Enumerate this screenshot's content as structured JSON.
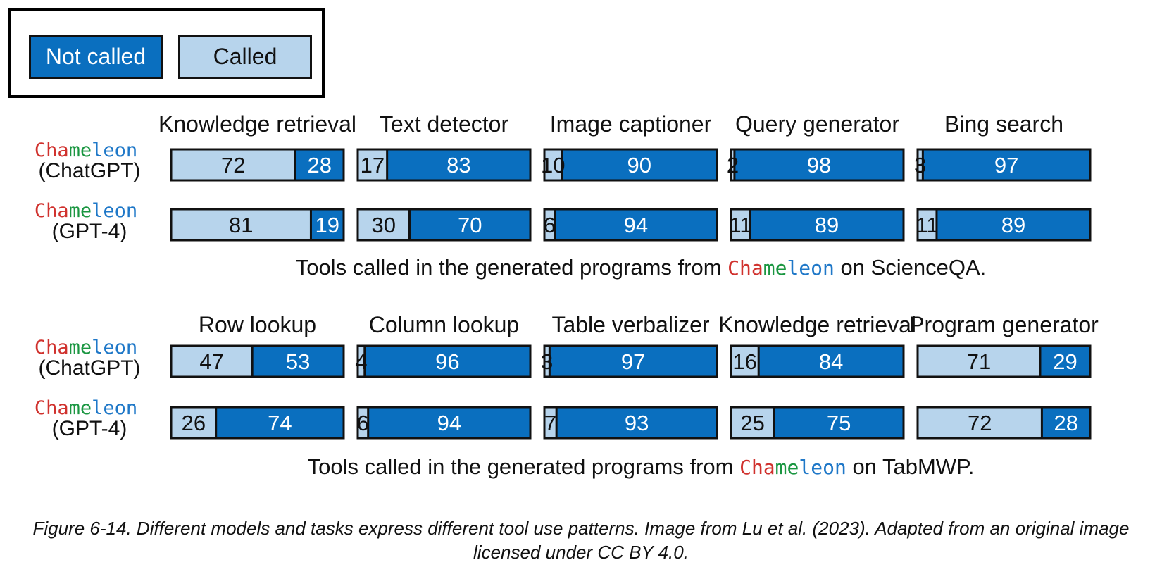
{
  "legend": {
    "not_called": "Not called",
    "called": "Called"
  },
  "colors": {
    "called": "#b7d4ec",
    "not_called": "#0a6fbf",
    "cham_c1": "#d0312d",
    "cham_c2": "#1a9641",
    "cham_c3": "#1f78c8"
  },
  "model_brand": "Chameleon",
  "chart_data": [
    {
      "type": "bar",
      "orientation": "horizontal-stacked",
      "dataset": "ScienceQA",
      "subtitle_pre": "Tools called in the generated programs from",
      "subtitle_post": "on ScienceQA.",
      "models": [
        "(ChatGPT)",
        "(GPT-4)"
      ],
      "tools": [
        {
          "name": "Knowledge retrieval",
          "values": [
            [
              72,
              28
            ],
            [
              81,
              19
            ]
          ]
        },
        {
          "name": "Text detector",
          "values": [
            [
              17,
              83
            ],
            [
              30,
              70
            ]
          ]
        },
        {
          "name": "Image captioner",
          "values": [
            [
              10,
              90
            ],
            [
              6,
              94
            ]
          ]
        },
        {
          "name": "Query generator",
          "values": [
            [
              2,
              98
            ],
            [
              11,
              89
            ]
          ]
        },
        {
          "name": "Bing search",
          "values": [
            [
              3,
              97
            ],
            [
              11,
              89
            ]
          ]
        }
      ],
      "series": [
        "Called",
        "Not called"
      ]
    },
    {
      "type": "bar",
      "orientation": "horizontal-stacked",
      "dataset": "TabMWP",
      "subtitle_pre": "Tools called in the generated programs from",
      "subtitle_post": "on TabMWP.",
      "models": [
        "(ChatGPT)",
        "(GPT-4)"
      ],
      "tools": [
        {
          "name": "Row lookup",
          "values": [
            [
              47,
              53
            ],
            [
              26,
              74
            ]
          ]
        },
        {
          "name": "Column lookup",
          "values": [
            [
              4,
              96
            ],
            [
              6,
              94
            ]
          ]
        },
        {
          "name": "Table verbalizer",
          "values": [
            [
              3,
              97
            ],
            [
              7,
              93
            ]
          ]
        },
        {
          "name": "Knowledge retrieval",
          "values": [
            [
              16,
              84
            ],
            [
              25,
              75
            ]
          ]
        },
        {
          "name": "Program generator",
          "values": [
            [
              71,
              29
            ],
            [
              72,
              28
            ]
          ]
        }
      ],
      "series": [
        "Called",
        "Not called"
      ]
    }
  ],
  "caption": "Figure 6-14. Different models and tasks express different tool use patterns. Image from Lu et al. (2023). Adapted from an original image licensed under CC BY 4.0."
}
